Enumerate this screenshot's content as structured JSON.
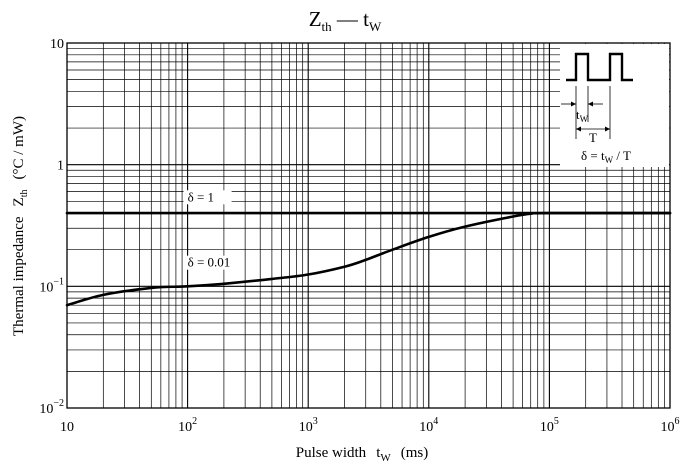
{
  "chart_data": {
    "type": "line",
    "title": {
      "main": "Z",
      "main_sub": "th",
      "sep": " — ",
      "var": "t",
      "var_sub": "W"
    },
    "xlabel": {
      "text": "Pulse width",
      "var": "t",
      "var_sub": "W",
      "unit": "(ms)"
    },
    "ylabel": {
      "text": "Thermal impedance",
      "var": "Z",
      "var_sub": "th",
      "unit": "(°C / mW)"
    },
    "x_scale": "log",
    "y_scale": "log",
    "xlim": [
      10,
      1000000
    ],
    "ylim": [
      0.01,
      10
    ],
    "x_ticks": [
      {
        "value": 10,
        "base": "10",
        "exp": ""
      },
      {
        "value": 100,
        "base": "10",
        "exp": "2"
      },
      {
        "value": 1000,
        "base": "10",
        "exp": "3"
      },
      {
        "value": 10000,
        "base": "10",
        "exp": "4"
      },
      {
        "value": 100000,
        "base": "10",
        "exp": "5"
      },
      {
        "value": 1000000,
        "base": "10",
        "exp": "6"
      }
    ],
    "y_ticks": [
      {
        "value": 10,
        "base": "10",
        "exp": ""
      },
      {
        "value": 1,
        "base": "1",
        "exp": ""
      },
      {
        "value": 0.1,
        "base": "10",
        "exp": "−1"
      },
      {
        "value": 0.01,
        "base": "10",
        "exp": "−2"
      }
    ],
    "grid": true,
    "series": [
      {
        "name": "δ = 1",
        "x": [
          10,
          1000000
        ],
        "y": [
          0.4,
          0.4
        ]
      },
      {
        "name": "δ = 0.01",
        "x": [
          10,
          20,
          50,
          100,
          200,
          500,
          1000,
          2000,
          3000,
          5000,
          10000,
          20000,
          50000,
          70000,
          100000,
          1000000
        ],
        "y": [
          0.07,
          0.085,
          0.097,
          0.1,
          0.105,
          0.115,
          0.125,
          0.145,
          0.165,
          0.2,
          0.255,
          0.31,
          0.375,
          0.395,
          0.4,
          0.4
        ]
      }
    ],
    "inset": {
      "pulse_label": {
        "var": "t",
        "sub": "W"
      },
      "period_label": "T",
      "formula": {
        "lhs": "δ = t",
        "lhs_sub": "W",
        "rhs": " / T"
      }
    }
  }
}
